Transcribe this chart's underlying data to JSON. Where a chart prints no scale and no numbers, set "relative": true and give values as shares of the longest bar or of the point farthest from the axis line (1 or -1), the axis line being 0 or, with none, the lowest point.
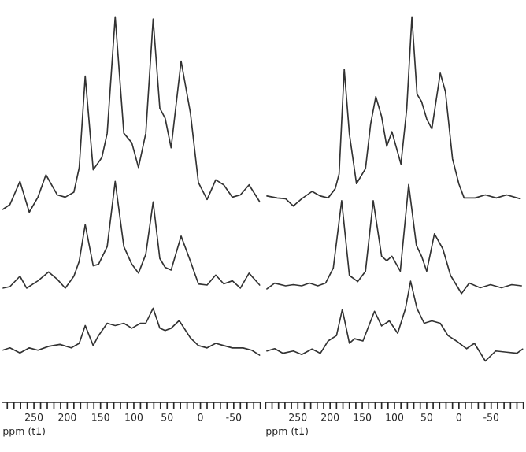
{
  "chart_data": [
    {
      "type": "line",
      "relative": true,
      "xlabel": "ppm (t1)",
      "xlim": [
        297,
        -90
      ],
      "xticks": [
        {
          "value": 290,
          "label": null
        },
        {
          "value": 280,
          "label": null
        },
        {
          "value": 270,
          "label": null
        },
        {
          "value": 260,
          "label": null
        },
        250,
        {
          "value": 240,
          "label": null
        },
        {
          "value": 230,
          "label": null
        },
        {
          "value": 220,
          "label": null
        },
        {
          "value": 210,
          "label": null
        },
        200,
        {
          "value": 190,
          "label": null
        },
        {
          "value": 180,
          "label": null
        },
        {
          "value": 170,
          "label": null
        },
        {
          "value": 160,
          "label": null
        },
        150,
        {
          "value": 140,
          "label": null
        },
        {
          "value": 130,
          "label": null
        },
        {
          "value": 120,
          "label": null
        },
        {
          "value": 110,
          "label": null
        },
        100,
        {
          "value": 90,
          "label": null
        },
        {
          "value": 80,
          "label": null
        },
        {
          "value": 70,
          "label": null
        },
        {
          "value": 60,
          "label": null
        },
        50,
        {
          "value": 40,
          "label": null
        },
        {
          "value": 30,
          "label": null
        },
        {
          "value": 20,
          "label": null
        },
        {
          "value": 10,
          "label": null
        },
        0,
        {
          "value": -10,
          "label": null
        },
        {
          "value": -20,
          "label": null
        },
        {
          "value": -30,
          "label": null
        },
        {
          "value": -40,
          "label": null
        },
        -50,
        {
          "value": -60,
          "label": null
        },
        {
          "value": -70,
          "label": null
        },
        {
          "value": -80,
          "label": null
        },
        {
          "value": -90,
          "label": null
        }
      ],
      "series": [
        {
          "color": "#333333",
          "x": [
            297,
            286,
            271,
            257,
            244,
            232,
            215,
            203,
            190,
            182,
            173,
            161,
            148,
            140,
            128,
            115,
            103,
            93,
            82,
            71,
            61,
            53,
            44,
            29,
            15,
            3,
            -10,
            -23,
            -35,
            -48,
            -60,
            -73,
            -89
          ],
          "values": [
            0.5,
            0.513,
            0.573,
            0.493,
            0.532,
            0.59,
            0.538,
            0.532,
            0.545,
            0.609,
            0.846,
            0.603,
            0.635,
            0.698,
            1.0,
            0.698,
            0.673,
            0.609,
            0.698,
            0.994,
            0.763,
            0.737,
            0.66,
            0.885,
            0.75,
            0.57,
            0.526,
            0.577,
            0.564,
            0.532,
            0.538,
            0.564,
            0.52
          ]
        },
        {
          "color": "#333333",
          "x": [
            297,
            286,
            271,
            261,
            244,
            228,
            215,
            203,
            190,
            182,
            173,
            161,
            153,
            140,
            128,
            115,
            103,
            93,
            82,
            71,
            61,
            53,
            44,
            29,
            15,
            3,
            -10,
            -23,
            -35,
            -48,
            -60,
            -73,
            -89
          ],
          "values": [
            0.296,
            0.3,
            0.327,
            0.296,
            0.315,
            0.338,
            0.319,
            0.296,
            0.327,
            0.366,
            0.461,
            0.354,
            0.358,
            0.404,
            0.573,
            0.404,
            0.358,
            0.335,
            0.384,
            0.52,
            0.373,
            0.35,
            0.343,
            0.431,
            0.366,
            0.307,
            0.304,
            0.33,
            0.307,
            0.315,
            0.296,
            0.335,
            0.304
          ]
        },
        {
          "color": "#333333",
          "x": [
            297,
            286,
            271,
            257,
            244,
            228,
            211,
            194,
            182,
            173,
            161,
            153,
            140,
            128,
            115,
            103,
            90,
            82,
            71,
            61,
            53,
            44,
            32,
            15,
            3,
            -10,
            -23,
            -35,
            -48,
            -64,
            -77,
            -89
          ],
          "values": [
            0.135,
            0.141,
            0.128,
            0.141,
            0.135,
            0.145,
            0.15,
            0.141,
            0.153,
            0.199,
            0.147,
            0.173,
            0.205,
            0.199,
            0.205,
            0.192,
            0.205,
            0.205,
            0.244,
            0.192,
            0.186,
            0.192,
            0.212,
            0.167,
            0.147,
            0.141,
            0.153,
            0.147,
            0.141,
            0.141,
            0.135,
            0.122
          ]
        }
      ]
    },
    {
      "type": "line",
      "relative": true,
      "xlabel": "ppm (t1)",
      "xlim": [
        300,
        -100
      ],
      "xticks": [
        {
          "value": 300,
          "label": null
        },
        {
          "value": 290,
          "label": null
        },
        {
          "value": 280,
          "label": null
        },
        {
          "value": 270,
          "label": null
        },
        {
          "value": 260,
          "label": null
        },
        250,
        {
          "value": 240,
          "label": null
        },
        {
          "value": 230,
          "label": null
        },
        {
          "value": 220,
          "label": null
        },
        {
          "value": 210,
          "label": null
        },
        200,
        {
          "value": 190,
          "label": null
        },
        {
          "value": 180,
          "label": null
        },
        {
          "value": 170,
          "label": null
        },
        {
          "value": 160,
          "label": null
        },
        150,
        {
          "value": 140,
          "label": null
        },
        {
          "value": 130,
          "label": null
        },
        {
          "value": 120,
          "label": null
        },
        {
          "value": 110,
          "label": null
        },
        100,
        {
          "value": 90,
          "label": null
        },
        {
          "value": 80,
          "label": null
        },
        {
          "value": 70,
          "label": null
        },
        {
          "value": 60,
          "label": null
        },
        50,
        {
          "value": 40,
          "label": null
        },
        {
          "value": 30,
          "label": null
        },
        {
          "value": 20,
          "label": null
        },
        {
          "value": 10,
          "label": null
        },
        0,
        {
          "value": -10,
          "label": null
        },
        {
          "value": -20,
          "label": null
        },
        {
          "value": -30,
          "label": null
        },
        {
          "value": -40,
          "label": null
        },
        -50,
        {
          "value": -60,
          "label": null
        },
        {
          "value": -70,
          "label": null
        },
        {
          "value": -80,
          "label": null
        },
        {
          "value": -90,
          "label": null
        },
        {
          "value": -100,
          "label": null
        }
      ],
      "series": [
        {
          "color": "#333333",
          "x": [
            298,
            282,
            269,
            257,
            244,
            228,
            215,
            203,
            192,
            186,
            178,
            170,
            159,
            145,
            137,
            129,
            120,
            112,
            104,
            90,
            81,
            73,
            65,
            58,
            50,
            42,
            29,
            21,
            10,
            0,
            -8,
            -25,
            -41,
            -58,
            -74,
            -95
          ],
          "values": [
            0.535,
            0.53,
            0.528,
            0.509,
            0.528,
            0.547,
            0.535,
            0.53,
            0.554,
            0.592,
            0.864,
            0.696,
            0.567,
            0.606,
            0.722,
            0.793,
            0.741,
            0.664,
            0.702,
            0.618,
            0.761,
            1.0,
            0.799,
            0.78,
            0.735,
            0.709,
            0.854,
            0.806,
            0.632,
            0.566,
            0.53,
            0.53,
            0.538,
            0.53,
            0.538,
            0.528
          ]
        },
        {
          "color": "#333333",
          "x": [
            298,
            286,
            269,
            257,
            244,
            232,
            219,
            207,
            195,
            182,
            170,
            157,
            145,
            133,
            120,
            112,
            104,
            91,
            78,
            66,
            58,
            50,
            38,
            25,
            13,
            -4,
            -16,
            -33,
            -49,
            -66,
            -82,
            -97
          ],
          "values": [
            0.294,
            0.309,
            0.302,
            0.305,
            0.302,
            0.309,
            0.302,
            0.309,
            0.348,
            0.523,
            0.329,
            0.313,
            0.34,
            0.523,
            0.379,
            0.367,
            0.379,
            0.34,
            0.565,
            0.407,
            0.379,
            0.34,
            0.437,
            0.398,
            0.329,
            0.282,
            0.309,
            0.297,
            0.305,
            0.297,
            0.305,
            0.302
          ]
        },
        {
          "color": "#333333",
          "x": [
            298,
            286,
            273,
            257,
            244,
            228,
            215,
            203,
            190,
            181,
            170,
            162,
            149,
            131,
            120,
            108,
            95,
            83,
            75,
            65,
            54,
            42,
            29,
            17,
            4,
            -12,
            -24,
            -41,
            -57,
            -74,
            -90,
            -99
          ],
          "values": [
            0.133,
            0.139,
            0.127,
            0.133,
            0.124,
            0.138,
            0.127,
            0.159,
            0.173,
            0.241,
            0.153,
            0.165,
            0.159,
            0.236,
            0.198,
            0.211,
            0.179,
            0.243,
            0.314,
            0.243,
            0.205,
            0.211,
            0.205,
            0.173,
            0.159,
            0.139,
            0.153,
            0.107,
            0.133,
            0.13,
            0.127,
            0.138
          ]
        }
      ]
    }
  ]
}
